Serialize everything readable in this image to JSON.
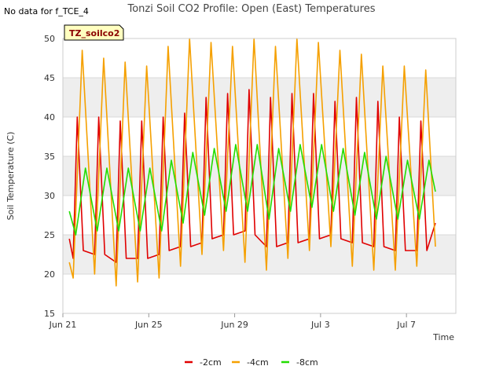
{
  "no_data_note": "No data for f_TCE_4",
  "badge": "TZ_soilco2",
  "colors": {
    "background_band": "#eeeeee",
    "grid": "#d8d8d8",
    "badge_fill": "#ffffc0"
  },
  "chart_data": {
    "type": "line",
    "title": "Tonzi Soil CO2 Profile: Open (East) Temperatures",
    "xlabel": "Time",
    "ylabel": "Soil Temperature (C)",
    "ylim": [
      15,
      50
    ],
    "yticks": [
      15,
      20,
      25,
      30,
      35,
      40,
      45,
      50
    ],
    "xlim_days": [
      0,
      18.3
    ],
    "xticks": [
      {
        "day": 0,
        "label": "Jun 21"
      },
      {
        "day": 4,
        "label": "Jun 25"
      },
      {
        "day": 8,
        "label": "Jun 29"
      },
      {
        "day": 12,
        "label": "Jul 3"
      },
      {
        "day": 16,
        "label": "Jul 7"
      }
    ],
    "grid": true,
    "legend_position": "bottom",
    "series": [
      {
        "name": "-2cm",
        "color": "#e00000",
        "x": [
          0.3,
          0.48,
          0.67,
          0.95,
          1.48,
          1.67,
          1.95,
          2.48,
          2.67,
          2.95,
          3.48,
          3.67,
          3.95,
          4.48,
          4.67,
          4.95,
          5.48,
          5.67,
          5.95,
          6.48,
          6.67,
          6.95,
          7.48,
          7.67,
          7.95,
          8.48,
          8.67,
          8.95,
          9.48,
          9.67,
          9.95,
          10.48,
          10.67,
          10.95,
          11.48,
          11.67,
          11.95,
          12.48,
          12.67,
          12.95,
          13.48,
          13.67,
          13.95,
          14.48,
          14.67,
          14.95,
          15.48,
          15.67,
          15.95,
          16.48,
          16.67,
          16.95,
          17.35
        ],
        "y": [
          24.5,
          22.0,
          40.0,
          23.0,
          22.5,
          40.0,
          22.5,
          21.5,
          39.5,
          22.0,
          22.0,
          39.5,
          22.0,
          22.5,
          40.0,
          23.0,
          23.5,
          40.5,
          23.5,
          24.0,
          42.5,
          24.5,
          25.0,
          43.0,
          25.0,
          25.5,
          43.5,
          25.0,
          23.5,
          42.5,
          23.5,
          24.0,
          43.0,
          24.0,
          24.5,
          43.0,
          24.5,
          25.0,
          42.0,
          24.5,
          24.0,
          42.5,
          24.0,
          23.5,
          42.0,
          23.5,
          23.0,
          40.0,
          23.0,
          23.0,
          39.5,
          23.0,
          26.5
        ]
      },
      {
        "name": "-4cm",
        "color": "#f5a000",
        "x": [
          0.3,
          0.48,
          0.9,
          1.48,
          1.9,
          2.48,
          2.9,
          3.48,
          3.9,
          4.48,
          4.9,
          5.48,
          5.9,
          6.48,
          6.9,
          7.48,
          7.9,
          8.48,
          8.9,
          9.48,
          9.9,
          10.48,
          10.9,
          11.48,
          11.9,
          12.48,
          12.9,
          13.48,
          13.9,
          14.48,
          14.9,
          15.48,
          15.9,
          16.48,
          16.9,
          17.35
        ],
        "y": [
          21.5,
          19.5,
          48.5,
          20.0,
          47.5,
          18.5,
          47.0,
          19.0,
          46.5,
          19.5,
          49.0,
          21.0,
          50.0,
          22.5,
          49.5,
          23.0,
          49.0,
          21.5,
          50.0,
          20.5,
          49.0,
          22.0,
          50.0,
          23.0,
          49.5,
          23.5,
          48.5,
          21.0,
          48.0,
          20.5,
          46.5,
          20.5,
          46.5,
          21.0,
          46.0,
          23.5
        ]
      },
      {
        "name": "-8cm",
        "color": "#22dd00",
        "x": [
          0.3,
          0.6,
          1.05,
          1.6,
          2.05,
          2.6,
          3.05,
          3.6,
          4.05,
          4.6,
          5.05,
          5.6,
          6.05,
          6.6,
          7.05,
          7.6,
          8.05,
          8.6,
          9.05,
          9.6,
          10.05,
          10.6,
          11.05,
          11.6,
          12.05,
          12.6,
          13.05,
          13.6,
          14.05,
          14.6,
          15.05,
          15.6,
          16.05,
          16.6,
          17.05,
          17.35
        ],
        "y": [
          28.0,
          25.0,
          33.5,
          25.5,
          33.5,
          25.5,
          33.5,
          25.5,
          33.5,
          25.5,
          34.5,
          26.5,
          35.5,
          27.5,
          36.0,
          28.0,
          36.5,
          28.0,
          36.5,
          27.0,
          36.0,
          28.0,
          36.5,
          28.5,
          36.5,
          28.0,
          36.0,
          27.5,
          35.5,
          27.0,
          35.0,
          27.0,
          34.5,
          27.0,
          34.5,
          30.5
        ]
      }
    ]
  }
}
